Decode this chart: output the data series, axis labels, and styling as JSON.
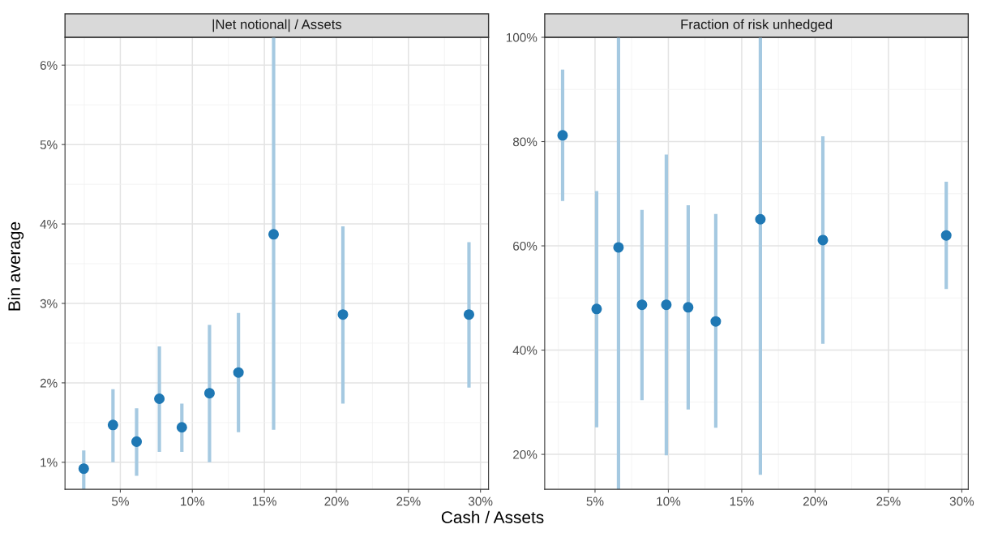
{
  "chart_data": [
    {
      "type": "scatter",
      "title": "|Net notional| / Assets",
      "xlabel": "Cash / Assets",
      "ylabel": "Bin average",
      "x": [
        2.46,
        4.49,
        6.13,
        7.71,
        9.27,
        11.19,
        13.2,
        15.64,
        20.45,
        29.2
      ],
      "series": [
        {
          "color": "#1f78b4",
          "values": [
            0.92,
            1.47,
            1.26,
            1.8,
            1.44,
            1.87,
            2.13,
            3.87,
            2.86,
            2.86
          ],
          "errors": [
            [
              0.66,
              1.15
            ],
            [
              1.0,
              1.92
            ],
            [
              0.83,
              1.68
            ],
            [
              1.13,
              2.46
            ],
            [
              1.13,
              1.74
            ],
            [
              1.0,
              2.73
            ],
            [
              1.38,
              2.88
            ],
            [
              1.41,
              6.35
            ],
            [
              1.74,
              3.97
            ],
            [
              1.94,
              3.77
            ]
          ]
        }
      ],
      "marker": "circle",
      "grid": true,
      "legend": false,
      "xlim": [
        1.16,
        30.56
      ],
      "xticks": [
        {
          "value": 5,
          "label": "5%"
        },
        {
          "value": 10,
          "label": "10%"
        },
        {
          "value": 15,
          "label": "15%"
        },
        {
          "value": 20,
          "label": "20%"
        },
        {
          "value": 25,
          "label": "25%"
        },
        {
          "value": 30,
          "label": "30%"
        }
      ],
      "ylim": [
        0.66,
        6.35
      ],
      "yticks": [
        {
          "value": 1,
          "label": "1%"
        },
        {
          "value": 2,
          "label": "2%"
        },
        {
          "value": 3,
          "label": "3%"
        },
        {
          "value": 4,
          "label": "4%"
        },
        {
          "value": 5,
          "label": "5%"
        },
        {
          "value": 6,
          "label": "6%"
        }
      ]
    },
    {
      "type": "scatter",
      "title": "Fraction of risk unhedged",
      "x": [
        2.79,
        5.11,
        6.6,
        8.2,
        9.86,
        11.35,
        13.23,
        16.27,
        20.53,
        28.94
      ],
      "series": [
        {
          "color": "#1f78b4",
          "values": [
            81.2,
            47.9,
            59.7,
            48.7,
            48.7,
            48.2,
            45.5,
            65.1,
            61.1,
            62.0
          ],
          "errors": [
            [
              68.6,
              93.8
            ],
            [
              25.2,
              70.5
            ],
            [
              13.3,
              100
            ],
            [
              30.4,
              66.9
            ],
            [
              19.8,
              77.5
            ],
            [
              28.6,
              67.8
            ],
            [
              25.1,
              66.1
            ],
            [
              16.1,
              100
            ],
            [
              41.2,
              81.0
            ],
            [
              51.7,
              72.3
            ]
          ]
        }
      ],
      "marker": "circle",
      "grid": true,
      "legend": false,
      "xlim": [
        1.57,
        30.44
      ],
      "xticks": [
        {
          "value": 5,
          "label": "5%"
        },
        {
          "value": 10,
          "label": "10%"
        },
        {
          "value": 15,
          "label": "15%"
        },
        {
          "value": 20,
          "label": "20%"
        },
        {
          "value": 25,
          "label": "25%"
        },
        {
          "value": 30,
          "label": "30%"
        }
      ],
      "ylim": [
        13.3,
        100
      ],
      "yticks": [
        {
          "value": 20,
          "label": "20%"
        },
        {
          "value": 40,
          "label": "40%"
        },
        {
          "value": 60,
          "label": "60%"
        },
        {
          "value": 80,
          "label": "80%"
        },
        {
          "value": 100,
          "label": "100%"
        }
      ]
    }
  ]
}
